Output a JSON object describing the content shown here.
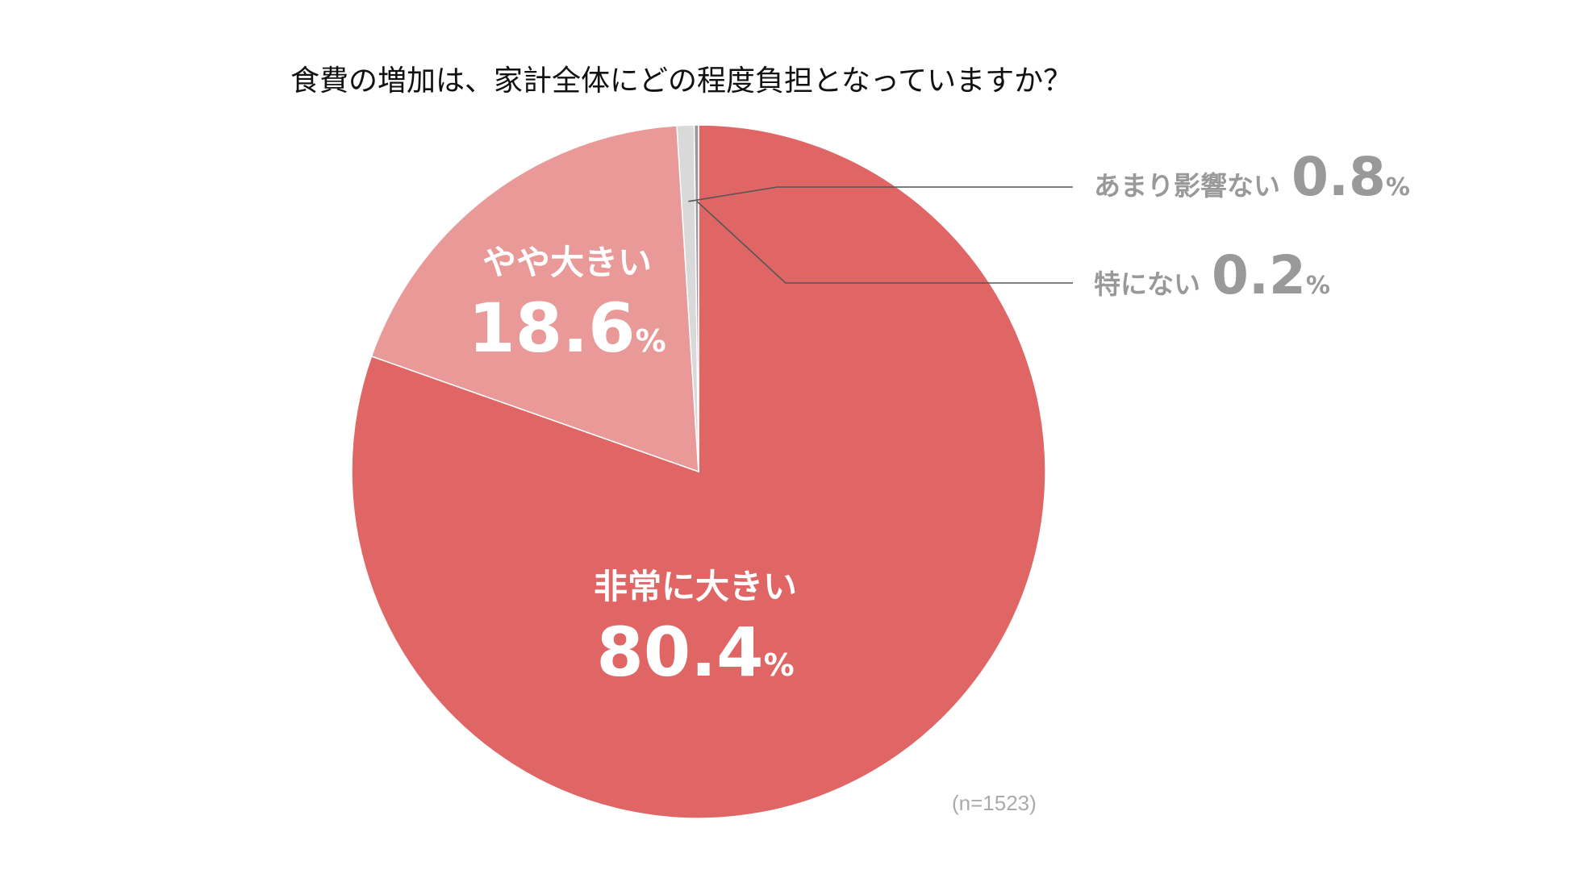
{
  "chart_data": {
    "type": "pie",
    "title": "食費の増加は、家計全体にどの程度負担となっていますか？",
    "slices": [
      {
        "label": "非常に大きい",
        "value": 80.4,
        "value_text": "80.4",
        "unit": "%",
        "color": "#e06666",
        "label_position": "inside"
      },
      {
        "label": "やや大きい",
        "value": 18.6,
        "value_text": "18.6",
        "unit": "%",
        "color": "#ea9999",
        "label_position": "inside"
      },
      {
        "label": "あまり影響ない",
        "value": 0.8,
        "value_text": "0.8",
        "unit": "%",
        "color": "#d9d9d9",
        "label_position": "outside"
      },
      {
        "label": "特にない",
        "value": 0.2,
        "value_text": "0.2",
        "unit": "%",
        "color": "#999999",
        "label_position": "outside"
      }
    ],
    "start_angle": "12 o'clock",
    "direction": "clockwise",
    "note": "(n=1523)"
  }
}
